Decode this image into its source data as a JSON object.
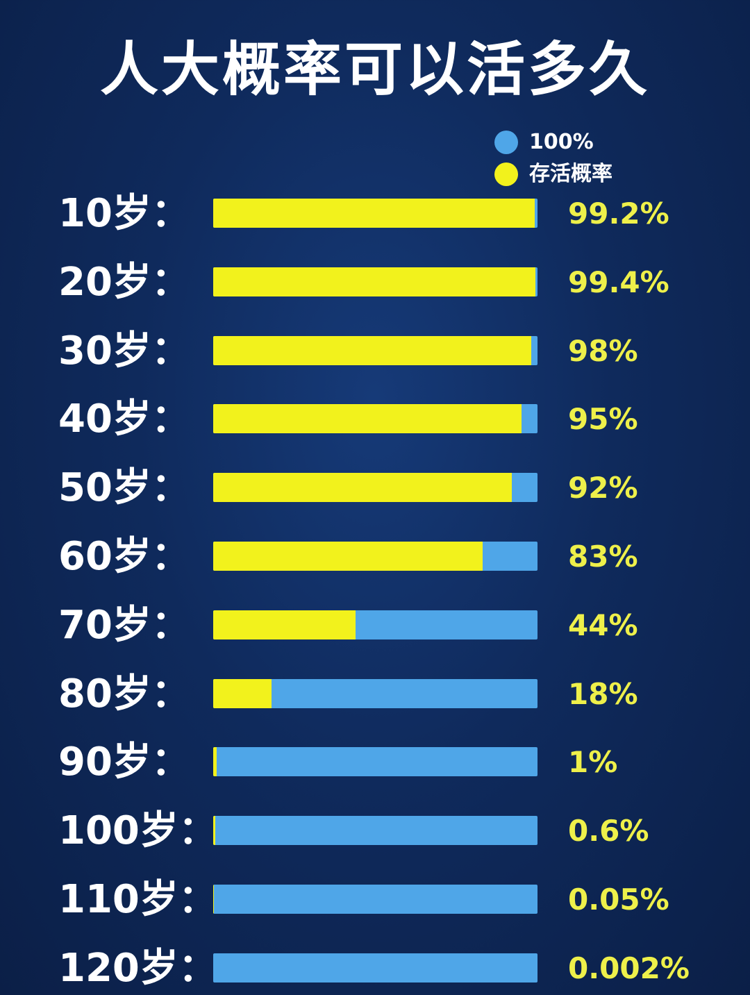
{
  "colors": {
    "background": "#0f2a5c",
    "title": "#ffffff",
    "full_bar": "#4fa6e8",
    "survival_bar": "#f2f21c",
    "percent_text": "#eef04a",
    "age_text": "#ffffff"
  },
  "legend": [
    {
      "label": "100%",
      "color": "#4fa6e8"
    },
    {
      "label": "存活概率",
      "color": "#f2f21c"
    }
  ],
  "chart_data": {
    "type": "bar",
    "title": "人大概率可以活多久",
    "orientation": "horizontal",
    "xlim": [
      0,
      100
    ],
    "legend_position": "top-right",
    "grid": false,
    "categories": [
      "10岁：",
      "20岁：",
      "30岁：",
      "40岁：",
      "50岁：",
      "60岁：",
      "70岁：",
      "80岁：",
      "90岁：",
      "100岁：",
      "110岁：",
      "120岁："
    ],
    "series": [
      {
        "name": "100%",
        "values": [
          100,
          100,
          100,
          100,
          100,
          100,
          100,
          100,
          100,
          100,
          100,
          100
        ]
      },
      {
        "name": "存活概率",
        "values": [
          99.2,
          99.4,
          98,
          95,
          92,
          83,
          44,
          18,
          1,
          0.6,
          0.05,
          0.002
        ]
      }
    ],
    "value_labels": [
      "99.2%",
      "99.4%",
      "98%",
      "95%",
      "92%",
      "83%",
      "44%",
      "18%",
      "1%",
      "0.6%",
      "0.05%",
      "0.002%"
    ]
  }
}
